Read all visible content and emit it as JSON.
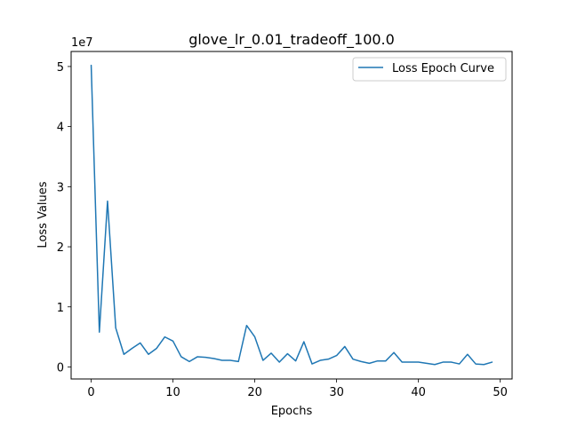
{
  "chart_data": {
    "type": "line",
    "title": "glove_lr_0.01_tradeoff_100.0",
    "xlabel": "Epochs",
    "ylabel": "Loss Values",
    "y_scale_label": "1e7",
    "xlim": [
      -2.45,
      51.45
    ],
    "ylim": [
      -2.0,
      52.5
    ],
    "x_ticks": [
      0,
      10,
      20,
      30,
      40,
      50
    ],
    "y_ticks": [
      0,
      1,
      2,
      3,
      4,
      5
    ],
    "legend_position": "top-right",
    "grid": false,
    "series": [
      {
        "name": "Loss Epoch Curve",
        "color": "#1f77b4",
        "x": [
          0,
          1,
          2,
          3,
          4,
          5,
          6,
          7,
          8,
          9,
          10,
          11,
          12,
          13,
          14,
          15,
          16,
          17,
          18,
          19,
          20,
          21,
          22,
          23,
          24,
          25,
          26,
          27,
          28,
          29,
          30,
          31,
          32,
          33,
          34,
          35,
          36,
          37,
          38,
          39,
          40,
          41,
          42,
          43,
          44,
          45,
          46,
          47,
          48,
          49
        ],
        "values": [
          50.2,
          5.8,
          27.6,
          6.5,
          2.1,
          3.1,
          4.0,
          2.1,
          3.1,
          5.0,
          4.3,
          1.7,
          0.9,
          1.7,
          1.6,
          1.4,
          1.1,
          1.1,
          0.9,
          6.9,
          5.0,
          1.1,
          2.3,
          0.8,
          2.2,
          1.0,
          4.2,
          0.5,
          1.1,
          1.3,
          1.9,
          3.4,
          1.3,
          0.9,
          0.6,
          1.0,
          1.0,
          2.4,
          0.8,
          0.8,
          0.8,
          0.6,
          0.4,
          0.8,
          0.8,
          0.5,
          2.1,
          0.5,
          0.4,
          0.8
        ]
      }
    ]
  }
}
